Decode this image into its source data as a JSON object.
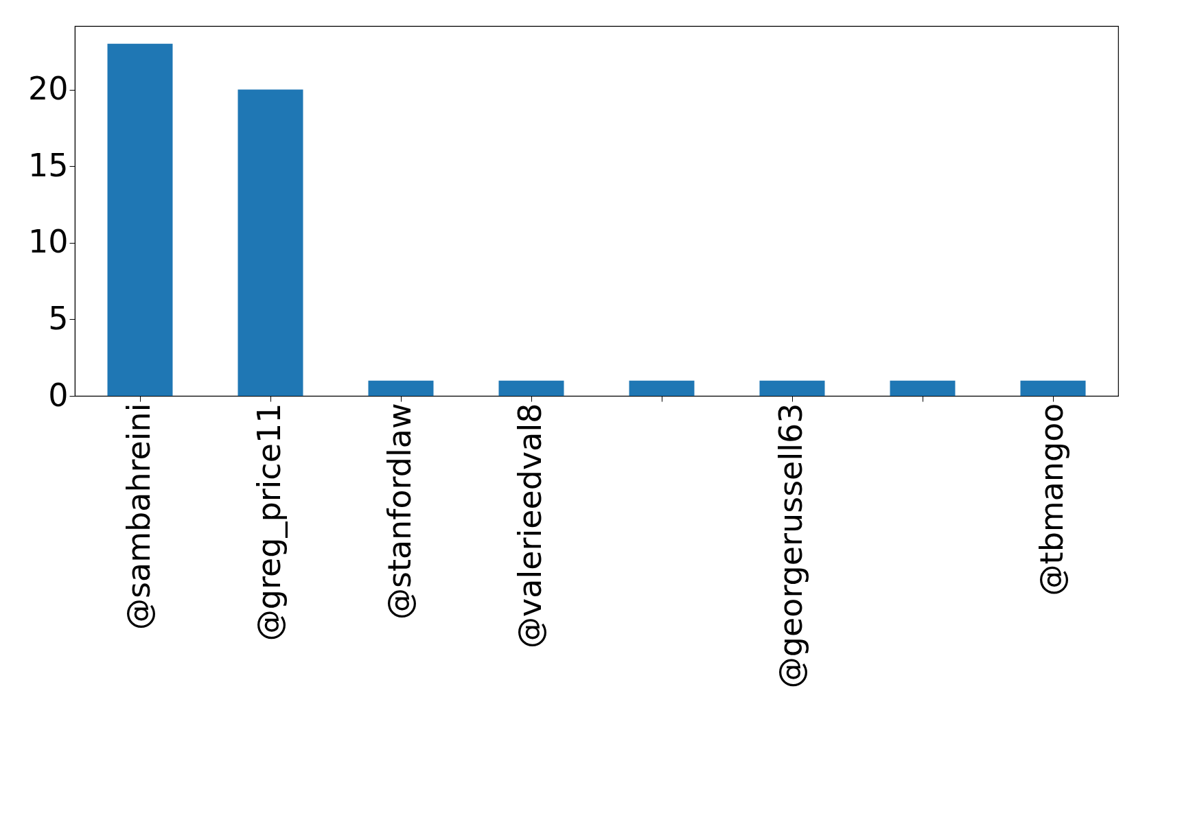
{
  "chart_data": {
    "type": "bar",
    "categories": [
      "@sambahreini",
      "@greg_price11",
      "@stanfordlaw",
      "@valerieedval8",
      null,
      "@georgerussell63",
      null,
      "@tbmangoo"
    ],
    "values": [
      23,
      20,
      1,
      1,
      1,
      1,
      1,
      1
    ],
    "color": "#1f77b4",
    "ylim": [
      0,
      24.15
    ],
    "yticks": [
      0,
      5,
      10,
      15,
      20
    ],
    "grid": false
  }
}
